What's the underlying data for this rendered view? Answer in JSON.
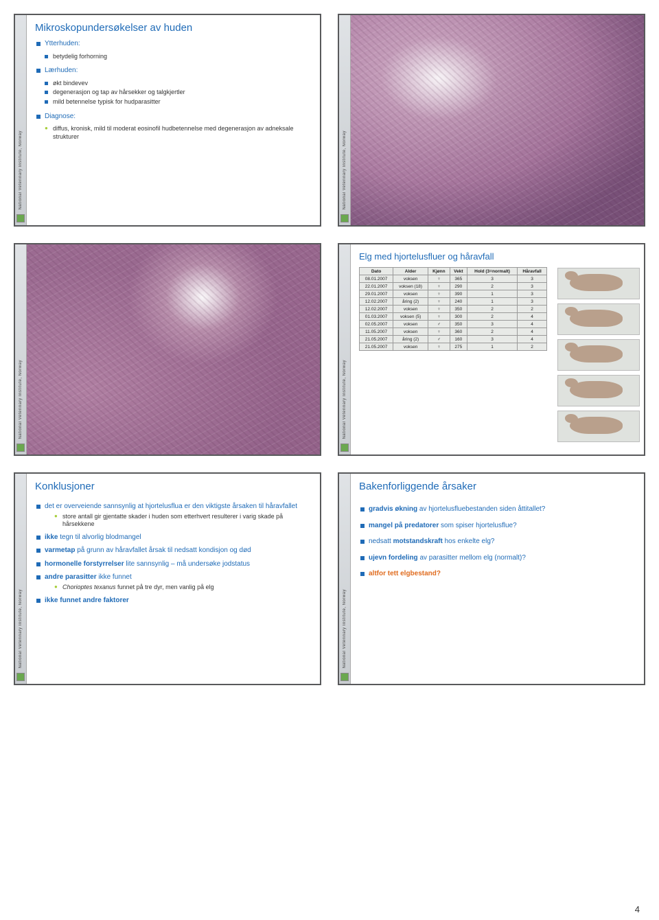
{
  "sidebar_text": "National Veterinary Institute, Norway",
  "page_number": "4",
  "slide1": {
    "title": "Mikroskopundersøkelser av huden",
    "s1": "Ytterhuden:",
    "s1_items": [
      "betydelig forhorning"
    ],
    "s2": "Lærhuden:",
    "s2_items": [
      "økt bindevev",
      "degenerasjon og tap av hårsekker og talgkjertler",
      "mild betennelse typisk for hudparasitter"
    ],
    "s3": "Diagnose:",
    "s3_items": [
      "diffus, kronisk, mild til moderat eosinofil hudbetennelse med degenerasjon av adneksale strukturer"
    ]
  },
  "slide4": {
    "title": "Elg med hjortelusfluer og håravfall",
    "columns": [
      "Dato",
      "Alder",
      "Kjønn",
      "Vekt",
      "Hold (3=normalt)",
      "Håravfall"
    ],
    "rows": [
      [
        "08.01.2007",
        "voksen",
        "♀",
        "365",
        "3",
        "3"
      ],
      [
        "22.01.2007",
        "voksen (18)",
        "♀",
        "290",
        "2",
        "3"
      ],
      [
        "29.01.2007",
        "voksen",
        "♀",
        "390",
        "1",
        "3"
      ],
      [
        "12.02.2007",
        "åring (2)",
        "♀",
        "240",
        "1",
        "3"
      ],
      [
        "12.02.2007",
        "voksen",
        "♀",
        "350",
        "2",
        "2"
      ],
      [
        "01.03.2007",
        "voksen (5)",
        "♀",
        "300",
        "2",
        "4"
      ],
      [
        "02.05.2007",
        "voksen",
        "♂",
        "350",
        "3",
        "4"
      ],
      [
        "11.05.2007",
        "voksen",
        "♀",
        "360",
        "2",
        "4"
      ],
      [
        "21.05.2007",
        "åring (2)",
        "♂",
        "160",
        "3",
        "4"
      ],
      [
        "21.05.2007",
        "voksen",
        "♀",
        "275",
        "1",
        "2"
      ]
    ]
  },
  "slide5": {
    "title": "Konklusjoner",
    "i1": "det er overveiende sannsynlig at hjortelusflua er den viktigste årsaken til håravfallet",
    "i1_sub": "store antall gir gjentatte skader i huden som etterhvert resulterer i varig skade på hårsekkene",
    "i2_pre": "ikke",
    "i2_rest": " tegn til alvorlig blodmangel",
    "i3_pre": "varmetap",
    "i3_rest": " på grunn av håravfallet årsak til nedsatt kondisjon og død",
    "i4_pre": "hormonelle forstyrrelser",
    "i4_rest": " lite sannsynlig – må undersøke jodstatus",
    "i5_pre": "andre parasitter",
    "i5_rest": " ikke funnet",
    "i5_sub_ital": "Chorioptes texanus",
    "i5_sub_rest": " funnet på tre dyr, men vanlig på elg",
    "i6": "ikke funnet andre faktorer"
  },
  "slide6": {
    "title": "Bakenforliggende årsaker",
    "i1_pre": "gradvis økning",
    "i1_rest": " av hjortelusfluebestanden siden åttitallet?",
    "i2_pre": "mangel på predatorer",
    "i2_rest": " som spiser hjortelusflue?",
    "i3_pre": "nedsatt ",
    "i3_bold": "motstandskraft",
    "i3_rest": " hos enkelte elg?",
    "i4_pre": "ujevn fordeling",
    "i4_rest": " av parasitter mellom elg (normalt)?",
    "i5": "altfor tett elgbestand?"
  },
  "colors": {
    "title": "#1f6bb7",
    "accent_green": "#a6ce39",
    "orange": "#e06c1f",
    "slide_border": "#58595b",
    "table_bg": "#e8eae7"
  }
}
